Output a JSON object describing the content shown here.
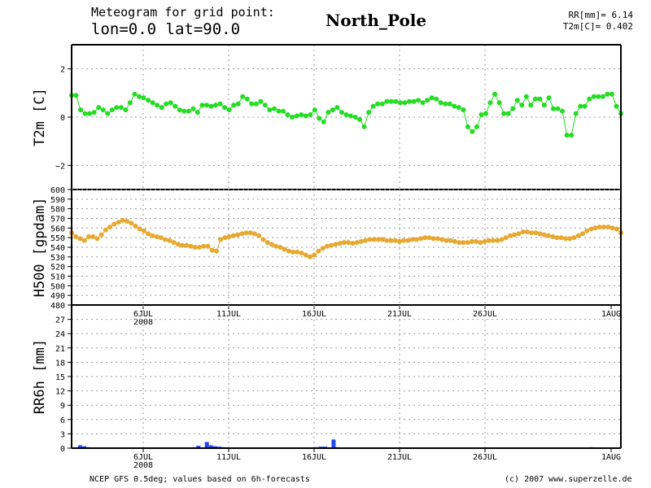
{
  "header": {
    "subtitle_line1": "Meteogram for grid point:",
    "subtitle_line2": "lon=0.0 lat=90.0",
    "title": "North_Pole",
    "stat_rr": "RR[mm]= 6.14",
    "stat_t2m": "T2m[C]= 0.402"
  },
  "footer": {
    "source": "NCEP GFS 0.5deg; values based on 6h-forecasts",
    "copyright": "(c) 2007 www.superzelle.de"
  },
  "colors": {
    "t2m": "#22dd22",
    "h500": "#e8a830",
    "rr6h": "#2244ee",
    "grid": "#999999"
  },
  "chart_data": [
    {
      "type": "line",
      "ylabel": "T2m [C]",
      "ylim": [
        -3,
        3
      ],
      "yticks": [
        {
          "value": 2,
          "label": "2"
        },
        {
          "value": 0,
          "label": "0"
        },
        {
          "value": -2,
          "label": "−2"
        }
      ],
      "x_tick_labels": [
        "6JUL",
        "11JUL",
        "16JUL",
        "21JUL",
        "26JUL",
        "1AUG"
      ],
      "x_year_label": "2008",
      "grid": true,
      "series": [
        {
          "values": [
            0.9,
            0.9,
            0.3,
            0.15,
            0.15,
            0.2,
            0.4,
            0.3,
            0.15,
            0.3,
            0.4,
            0.4,
            0.3,
            0.6,
            0.95,
            0.85,
            0.8,
            0.7,
            0.6,
            0.5,
            0.4,
            0.55,
            0.6,
            0.45,
            0.3,
            0.25,
            0.25,
            0.35,
            0.2,
            0.5,
            0.5,
            0.45,
            0.5,
            0.55,
            0.4,
            0.3,
            0.5,
            0.55,
            0.85,
            0.75,
            0.55,
            0.55,
            0.65,
            0.5,
            0.3,
            0.35,
            0.25,
            0.25,
            0.1,
            0.0,
            0.05,
            0.1,
            0.05,
            0.1,
            0.3,
            -0.05,
            -0.2,
            0.2,
            0.3,
            0.4,
            0.2,
            0.1,
            0.05,
            0.0,
            -0.1,
            -0.4,
            0.2,
            0.45,
            0.55,
            0.55,
            0.65,
            0.65,
            0.65,
            0.6,
            0.6,
            0.65,
            0.65,
            0.7,
            0.6,
            0.7,
            0.8,
            0.75,
            0.6,
            0.55,
            0.55,
            0.45,
            0.4,
            0.3,
            -0.4,
            -0.6,
            -0.4,
            0.1,
            0.15,
            0.6,
            0.95,
            0.6,
            0.15,
            0.15,
            0.35,
            0.7,
            0.5,
            0.85,
            0.5,
            0.75,
            0.75,
            0.5,
            0.8,
            0.35,
            0.35,
            0.25,
            -0.75,
            -0.75,
            0.15,
            0.45,
            0.45,
            0.75,
            0.85,
            0.85,
            0.85,
            0.95,
            0.95,
            0.45,
            0.15
          ]
        }
      ]
    },
    {
      "type": "line",
      "ylabel": "H500 [gpdam]",
      "ylim": [
        480,
        600
      ],
      "yticks": [
        {
          "value": 600,
          "label": "600"
        },
        {
          "value": 590,
          "label": "590"
        },
        {
          "value": 580,
          "label": "580"
        },
        {
          "value": 570,
          "label": "570"
        },
        {
          "value": 560,
          "label": "560"
        },
        {
          "value": 550,
          "label": "550"
        },
        {
          "value": 540,
          "label": "540"
        },
        {
          "value": 530,
          "label": "530"
        },
        {
          "value": 520,
          "label": "520"
        },
        {
          "value": 510,
          "label": "510"
        },
        {
          "value": 500,
          "label": "500"
        },
        {
          "value": 490,
          "label": "490"
        },
        {
          "value": 480,
          "label": "480"
        }
      ],
      "x_tick_labels": [
        "6JUL",
        "11JUL",
        "16JUL",
        "21JUL",
        "26JUL",
        "1AUG"
      ],
      "x_year_label": "2008",
      "grid": true,
      "series": [
        {
          "values": [
            555,
            551,
            549,
            547,
            551,
            551,
            549,
            553,
            558,
            561,
            564,
            566,
            568,
            567,
            565,
            562,
            559,
            557,
            554,
            552,
            551,
            550,
            548,
            547,
            545,
            543,
            542,
            542,
            541,
            540,
            540,
            541,
            541,
            537,
            536,
            548,
            550,
            551,
            552,
            553,
            554,
            555,
            555,
            554,
            552,
            548,
            545,
            543,
            541,
            540,
            538,
            536,
            535,
            535,
            534,
            532,
            530,
            532,
            536,
            539,
            541,
            542,
            543,
            544,
            545,
            545,
            544,
            545,
            546,
            547,
            548,
            548,
            548,
            548,
            547,
            547,
            547,
            546,
            547,
            547,
            548,
            548,
            549,
            550,
            550,
            549,
            549,
            548,
            547,
            547,
            546,
            545,
            545,
            545,
            546,
            546,
            545,
            546,
            547,
            547,
            547,
            548,
            550,
            552,
            553,
            554,
            556,
            556,
            555,
            555,
            554,
            553,
            552,
            551,
            550,
            550,
            549,
            549,
            550,
            552,
            554,
            557,
            559,
            560,
            561,
            561,
            561,
            560,
            559,
            555
          ]
        }
      ]
    },
    {
      "type": "bar",
      "ylabel": "RR6h [mm]",
      "ylim": [
        0,
        30
      ],
      "yticks": [
        {
          "value": 27,
          "label": "27"
        },
        {
          "value": 24,
          "label": "24"
        },
        {
          "value": 21,
          "label": "21"
        },
        {
          "value": 18,
          "label": "18"
        },
        {
          "value": 15,
          "label": "15"
        },
        {
          "value": 12,
          "label": "12"
        },
        {
          "value": 9,
          "label": "9"
        },
        {
          "value": 6,
          "label": "6"
        },
        {
          "value": 3,
          "label": "3"
        },
        {
          "value": 0,
          "label": "0"
        }
      ],
      "x_tick_labels": [
        "6JUL",
        "11JUL",
        "16JUL",
        "21JUL",
        "26JUL",
        "1AUG"
      ],
      "x_year_label": "2008",
      "grid": true,
      "series": [
        {
          "values": [
            0.05,
            0.1,
            0.6,
            0.4,
            0.2,
            0.1,
            0,
            0,
            0,
            0,
            0,
            0,
            0,
            0,
            0,
            0,
            0,
            0,
            0,
            0,
            0,
            0,
            0,
            0,
            0,
            0,
            0,
            0,
            0,
            0.2,
            0.5,
            0.1,
            1.3,
            0.6,
            0.4,
            0.3,
            0.2,
            0.1,
            0.1,
            0.05,
            0.05,
            0,
            0,
            0,
            0,
            0.1,
            0.1,
            0,
            0,
            0,
            0.05,
            0.1,
            0,
            0,
            0,
            0,
            0,
            0.1,
            0.2,
            0.3,
            0.3,
            0.1,
            1.8,
            0.2,
            0.1,
            0,
            0,
            0,
            0,
            0,
            0,
            0,
            0,
            0,
            0,
            0,
            0,
            0,
            0,
            0,
            0,
            0,
            0,
            0,
            0,
            0,
            0,
            0,
            0,
            0,
            0,
            0,
            0,
            0,
            0,
            0,
            0,
            0,
            0,
            0,
            0,
            0,
            0,
            0,
            0,
            0,
            0,
            0,
            0,
            0,
            0,
            0,
            0,
            0,
            0,
            0,
            0,
            0,
            0,
            0,
            0,
            0,
            0,
            0.2,
            0.1,
            0,
            0,
            0,
            0,
            0,
            0
          ]
        }
      ]
    }
  ]
}
